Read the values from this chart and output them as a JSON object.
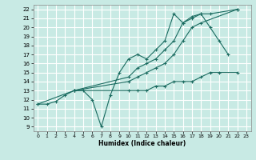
{
  "title": "",
  "xlabel": "Humidex (Indice chaleur)",
  "ylabel": "",
  "background_color": "#c8eae4",
  "grid_color": "#ffffff",
  "line_color": "#1a6b60",
  "xlim": [
    -0.5,
    23.5
  ],
  "ylim": [
    8.5,
    22.5
  ],
  "xticks": [
    0,
    1,
    2,
    3,
    4,
    5,
    6,
    7,
    8,
    9,
    10,
    11,
    12,
    13,
    14,
    15,
    16,
    17,
    18,
    19,
    20,
    21,
    22,
    23
  ],
  "yticks": [
    9,
    10,
    11,
    12,
    13,
    14,
    15,
    16,
    17,
    18,
    19,
    20,
    21,
    22
  ],
  "series": [
    {
      "x": [
        0,
        1,
        2,
        3,
        4,
        5,
        6,
        7,
        8,
        9,
        10,
        11,
        12,
        13,
        14,
        15,
        16,
        17,
        18,
        19,
        20,
        21
      ],
      "y": [
        11.5,
        11.5,
        11.8,
        12.5,
        13.0,
        13.0,
        12.0,
        9.0,
        12.5,
        15.0,
        16.5,
        17.0,
        16.5,
        17.5,
        18.5,
        21.5,
        20.5,
        21.0,
        21.5,
        20.0,
        18.5,
        17.0
      ]
    },
    {
      "x": [
        4,
        10,
        11,
        12,
        13,
        14,
        15,
        16,
        17,
        18,
        19,
        22
      ],
      "y": [
        13.0,
        14.5,
        15.5,
        16.0,
        16.5,
        17.5,
        18.5,
        20.5,
        21.2,
        21.5,
        21.5,
        22.0
      ]
    },
    {
      "x": [
        4,
        10,
        11,
        12,
        13,
        14,
        15,
        16,
        17,
        18,
        22
      ],
      "y": [
        13.0,
        14.0,
        14.5,
        15.0,
        15.5,
        16.0,
        17.0,
        18.5,
        20.0,
        20.5,
        22.0
      ]
    },
    {
      "x": [
        0,
        4,
        10,
        11,
        12,
        13,
        14,
        15,
        16,
        17,
        18,
        19,
        20,
        22
      ],
      "y": [
        11.5,
        13.0,
        13.0,
        13.0,
        13.0,
        13.5,
        13.5,
        14.0,
        14.0,
        14.0,
        14.5,
        15.0,
        15.0,
        15.0
      ]
    }
  ]
}
